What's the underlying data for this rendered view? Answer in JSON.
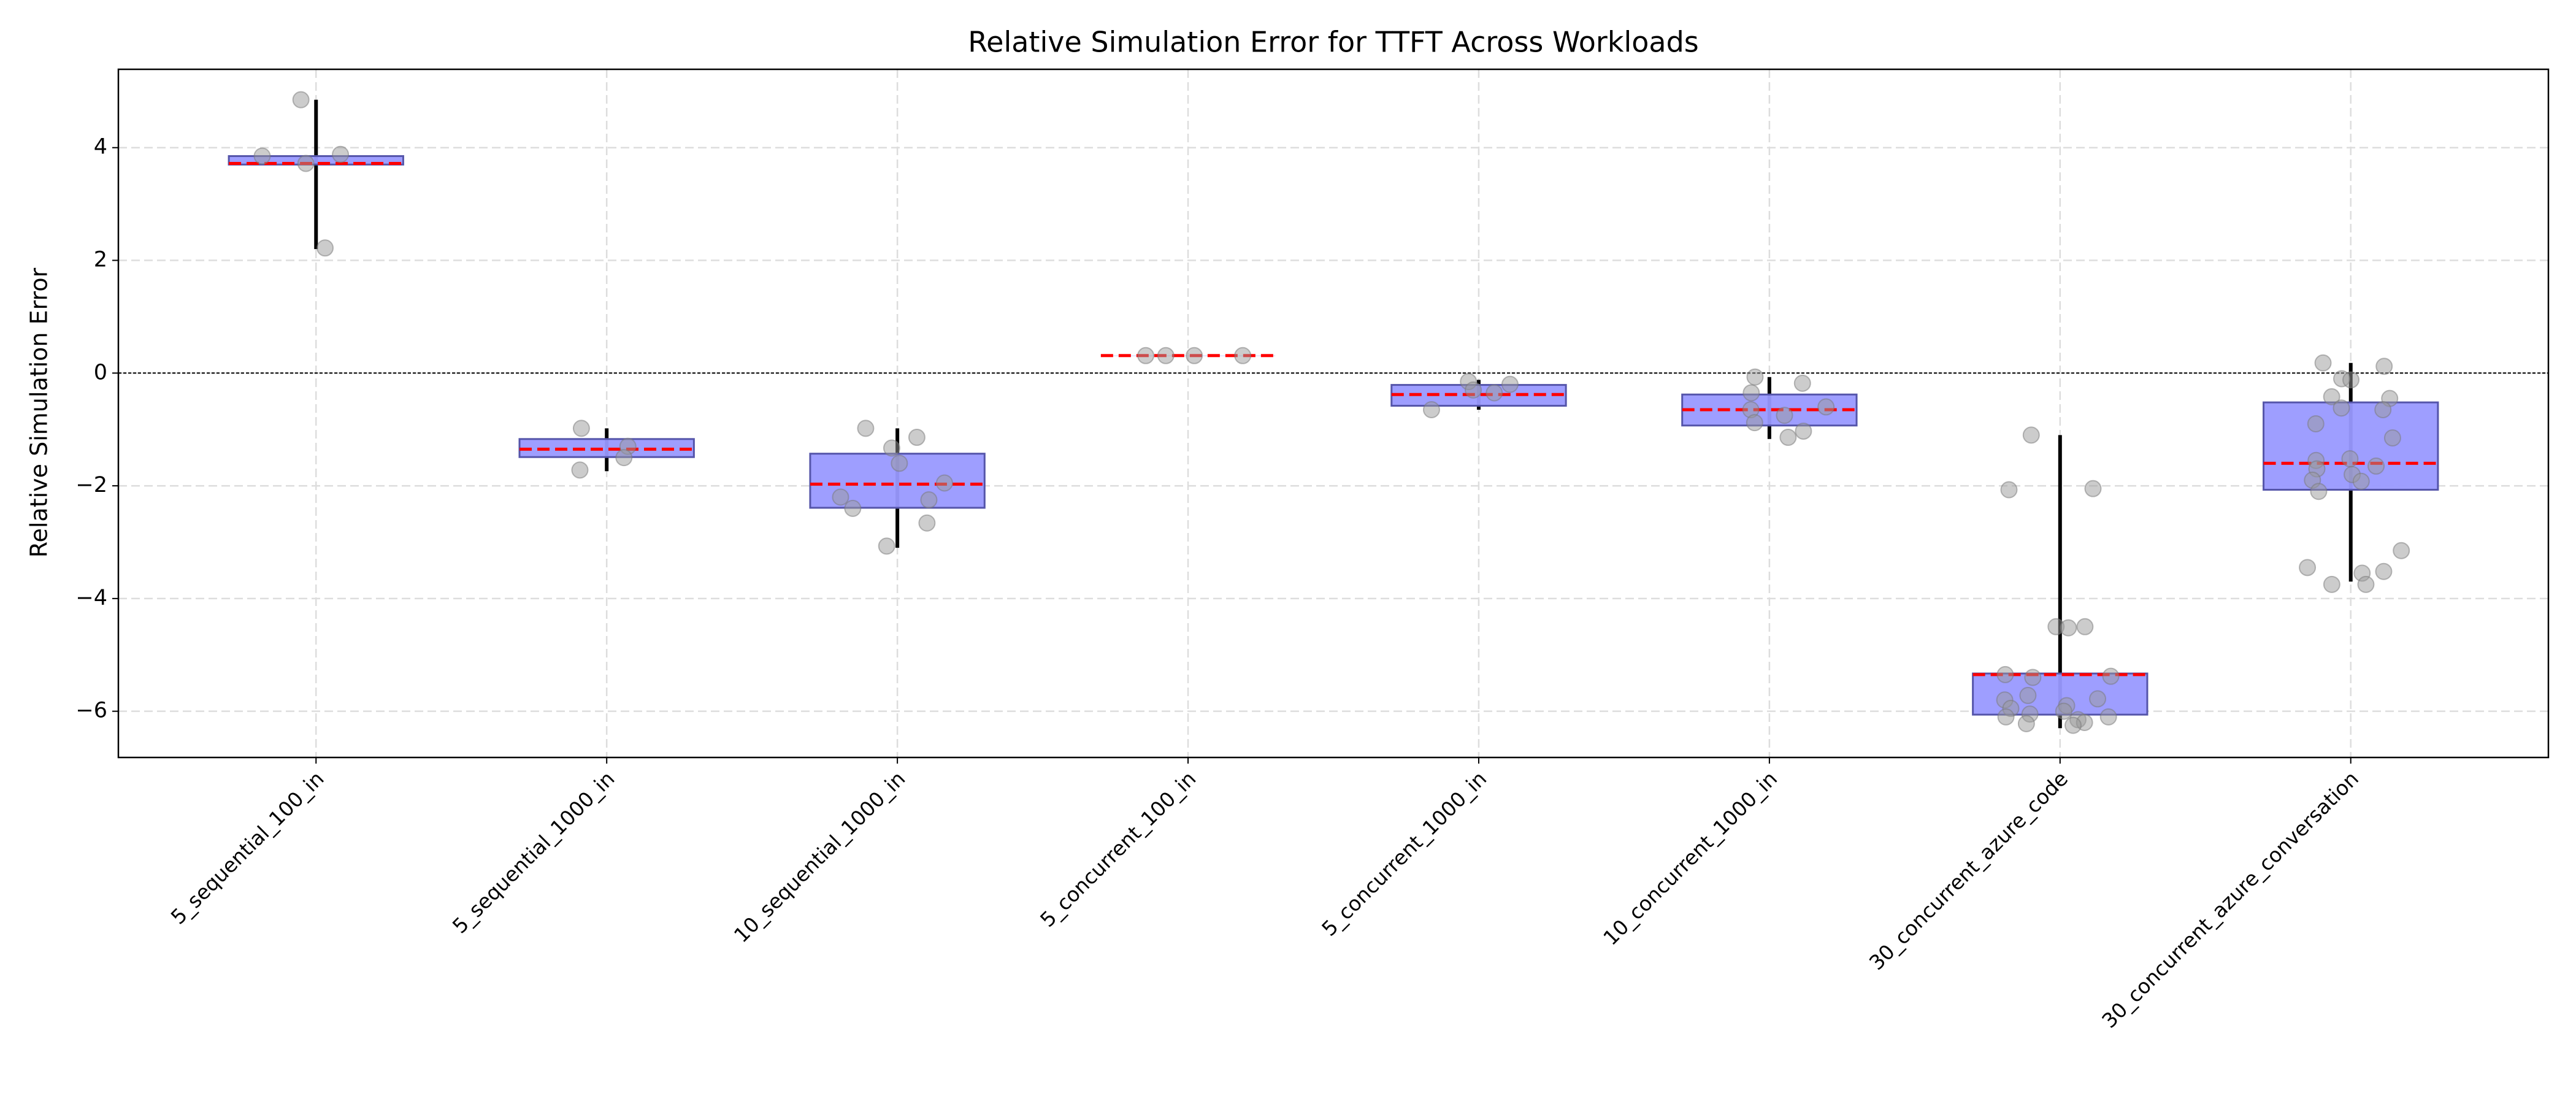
{
  "chart_data": {
    "type": "box",
    "title": "Relative Simulation Error for TTFT Across Workloads",
    "y_label": "Relative Simulation Error",
    "categories": [
      "5_sequential_100_in",
      "5_sequential_1000_in",
      "10_sequential_1000_in",
      "5_concurrent_100_in",
      "5_concurrent_1000_in",
      "10_concurrent_1000_in",
      "30_concurrent_azure_code",
      "30_concurrent_azure_conversation"
    ],
    "boxes": [
      {
        "whislo": 2.2,
        "q1": 3.7,
        "median": 3.72,
        "q3": 3.85,
        "whishi": 4.85,
        "points": [
          4.85,
          3.85,
          3.88,
          3.72,
          2.22
        ]
      },
      {
        "whislo": -1.74,
        "q1": -1.49,
        "median": -1.35,
        "q3": -1.17,
        "whishi": -0.98,
        "points": [
          -0.98,
          -1.3,
          -1.5,
          -1.72
        ]
      },
      {
        "whislo": -3.1,
        "q1": -2.39,
        "median": -1.97,
        "q3": -1.43,
        "whishi": -0.98,
        "points": [
          -0.98,
          -1.14,
          -1.33,
          -1.6,
          -1.95,
          -2.2,
          -2.25,
          -2.4,
          -2.66,
          -3.07
        ]
      },
      {
        "whislo": 0.31,
        "q1": 0.31,
        "median": 0.31,
        "q3": 0.31,
        "whishi": 0.31,
        "points": [
          0.31,
          0.31,
          0.31,
          0.31
        ]
      },
      {
        "whislo": -0.65,
        "q1": -0.58,
        "median": -0.38,
        "q3": -0.21,
        "whishi": -0.12,
        "points": [
          -0.15,
          -0.2,
          -0.3,
          -0.35,
          -0.65
        ]
      },
      {
        "whislo": -1.17,
        "q1": -0.93,
        "median": -0.65,
        "q3": -0.38,
        "whishi": -0.07,
        "points": [
          -0.07,
          -0.18,
          -0.35,
          -0.6,
          -0.65,
          -0.75,
          -0.88,
          -1.03,
          -1.14
        ]
      },
      {
        "whislo": -6.3,
        "q1": -6.06,
        "median": -5.35,
        "q3": -5.33,
        "whishi": -1.1,
        "points": [
          -1.1,
          -2.05,
          -2.07,
          -4.5,
          -4.5,
          -4.52,
          -5.35,
          -5.38,
          -5.4,
          -5.72,
          -5.78,
          -5.8,
          -5.9,
          -5.95,
          -6.0,
          -6.05,
          -6.1,
          -6.1,
          -6.15,
          -6.2,
          -6.22,
          -6.25
        ]
      },
      {
        "whislo": -3.7,
        "q1": -2.07,
        "median": -1.6,
        "q3": -0.52,
        "whishi": 0.18,
        "points": [
          0.18,
          0.12,
          -0.1,
          -0.12,
          -0.42,
          -0.45,
          -0.62,
          -0.65,
          -0.9,
          -1.15,
          -1.52,
          -1.55,
          -1.65,
          -1.7,
          -1.8,
          -1.9,
          -1.92,
          -2.1,
          -3.15,
          -3.45,
          -3.52,
          -3.55,
          -3.75,
          -3.75
        ]
      }
    ],
    "box_color": "#9999ff",
    "box_edge_color": "#5555aa",
    "median_color": "#ff0000",
    "whisker_color": "#000000",
    "point_color": "#999999",
    "reference_line": 0,
    "ylim": [
      -6.82,
      5.39
    ],
    "yticks": [
      {
        "value": -6,
        "label": "−6"
      },
      {
        "value": -4,
        "label": "−4"
      },
      {
        "value": -2,
        "label": "−2"
      },
      0,
      2,
      4
    ],
    "grid": true
  }
}
